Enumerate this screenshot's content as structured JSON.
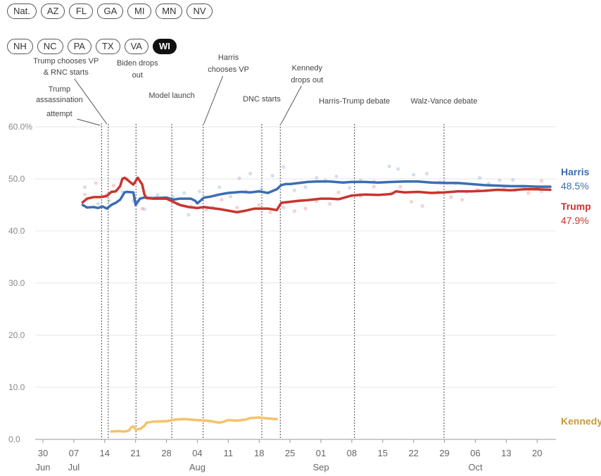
{
  "tabs": {
    "row1": [
      "Nat.",
      "AZ",
      "FL",
      "GA",
      "MI",
      "MN",
      "NV"
    ],
    "row2": [
      "NH",
      "NC",
      "PA",
      "TX",
      "VA",
      "WI"
    ],
    "selected": "WI"
  },
  "chart_data": {
    "type": "line",
    "title": "",
    "xlabel": "",
    "ylabel": "",
    "ylim": [
      0,
      60
    ],
    "y_ticks": [
      "0.0",
      "10.0",
      "20.0",
      "30.0",
      "40.0",
      "50.0",
      "60.0%"
    ],
    "y_tick_values": [
      0,
      10,
      20,
      30,
      40,
      50,
      60
    ],
    "x_ticks": [
      {
        "day": 0,
        "label": "30",
        "month": "Jun"
      },
      {
        "day": 7,
        "label": "07",
        "month": "Jul"
      },
      {
        "day": 14,
        "label": "14",
        "month": ""
      },
      {
        "day": 21,
        "label": "21",
        "month": ""
      },
      {
        "day": 28,
        "label": "28",
        "month": ""
      },
      {
        "day": 35,
        "label": "04",
        "month": "Aug"
      },
      {
        "day": 42,
        "label": "11",
        "month": ""
      },
      {
        "day": 49,
        "label": "18",
        "month": ""
      },
      {
        "day": 56,
        "label": "25",
        "month": ""
      },
      {
        "day": 63,
        "label": "01",
        "month": "Sep"
      },
      {
        "day": 70,
        "label": "08",
        "month": ""
      },
      {
        "day": 77,
        "label": "15",
        "month": ""
      },
      {
        "day": 84,
        "label": "22",
        "month": ""
      },
      {
        "day": 91,
        "label": "29",
        "month": ""
      },
      {
        "day": 98,
        "label": "06",
        "month": "Oct"
      },
      {
        "day": 105,
        "label": "13",
        "month": ""
      },
      {
        "day": 112,
        "label": "20",
        "month": ""
      }
    ],
    "events": [
      {
        "day": 13.3,
        "lines": [
          "Trump",
          "assassination",
          "attempt"
        ]
      },
      {
        "day": 14.8,
        "lines": [
          "Trump chooses VP",
          "& RNC starts"
        ]
      },
      {
        "day": 21.1,
        "lines": [
          "Biden drops",
          "out"
        ]
      },
      {
        "day": 29.2,
        "lines": [
          "Model launch"
        ]
      },
      {
        "day": 36.3,
        "lines": [
          "Harris",
          "chooses VP"
        ]
      },
      {
        "day": 49.6,
        "lines": [
          "DNC starts"
        ]
      },
      {
        "day": 53.8,
        "lines": [
          "Kennedy",
          "drops out"
        ]
      },
      {
        "day": 70.6,
        "lines": [
          "Harris-Trump debate"
        ]
      },
      {
        "day": 90.9,
        "lines": [
          "Walz-Vance debate"
        ]
      }
    ],
    "series": [
      {
        "name": "Harris",
        "color": "#3b6db3",
        "end_value": "48.5%",
        "x": [
          9.0,
          10.0,
          11.5,
          12.5,
          13.5,
          14.5,
          15.5,
          16.5,
          17.5,
          18.5,
          19.0,
          20.5,
          21.0,
          22.0,
          23.0,
          25.0,
          28.0,
          29.5,
          31.0,
          33.5,
          34.5,
          35.0,
          36.5,
          38.0,
          40.0,
          42.0,
          45.0,
          47.0,
          49.0,
          51.0,
          53.0,
          54.0,
          55.0,
          56.0,
          58.0,
          60.0,
          62.0,
          65.0,
          68.0,
          70.0,
          73.0,
          76.0,
          79.0,
          82.0,
          85.0,
          88.0,
          91.0,
          94.0,
          97.0,
          100.0,
          103.0,
          106.0,
          109.0,
          112.0,
          115.0
        ],
        "values": [
          45.0,
          44.5,
          44.6,
          44.4,
          44.7,
          44.3,
          45.0,
          45.4,
          46.0,
          47.4,
          47.5,
          47.4,
          45.0,
          46.2,
          46.4,
          46.3,
          46.4,
          46.0,
          46.2,
          46.2,
          45.8,
          45.3,
          46.4,
          46.6,
          47.0,
          47.3,
          47.5,
          47.4,
          47.6,
          47.3,
          48.0,
          48.8,
          49.0,
          49.0,
          49.2,
          49.4,
          49.5,
          49.5,
          49.3,
          49.4,
          49.4,
          49.3,
          49.4,
          49.5,
          49.5,
          49.3,
          49.2,
          49.2,
          49.0,
          48.8,
          48.7,
          48.6,
          48.6,
          48.5,
          48.5
        ]
      },
      {
        "name": "Trump",
        "color": "#c8352e",
        "end_value": "47.9%",
        "x": [
          9.0,
          10.0,
          11.5,
          13.0,
          14.5,
          15.5,
          16.5,
          17.5,
          18.0,
          18.5,
          19.0,
          20.0,
          20.5,
          21.5,
          22.5,
          23.0,
          23.5,
          25.0,
          28.0,
          29.5,
          31.0,
          33.0,
          35.0,
          36.5,
          38.0,
          40.0,
          42.0,
          44.0,
          46.0,
          48.0,
          51.0,
          53.0,
          54.0,
          56.0,
          58.0,
          60.0,
          63.0,
          65.0,
          67.0,
          70.0,
          73.0,
          76.0,
          79.0,
          80.0,
          82.0,
          85.0,
          88.0,
          91.0,
          94.0,
          97.0,
          100.0,
          103.0,
          106.0,
          109.0,
          112.0,
          115.0
        ],
        "values": [
          45.5,
          46.2,
          46.5,
          46.5,
          46.7,
          47.5,
          47.6,
          48.6,
          50.0,
          50.2,
          49.9,
          49.2,
          48.9,
          50.2,
          48.9,
          47.0,
          46.3,
          46.2,
          46.2,
          45.6,
          45.0,
          44.6,
          44.4,
          44.6,
          44.4,
          44.2,
          43.9,
          43.6,
          43.9,
          44.3,
          44.3,
          44.0,
          45.4,
          45.6,
          45.8,
          45.9,
          46.2,
          46.2,
          46.1,
          46.8,
          47.0,
          46.9,
          47.1,
          47.6,
          47.4,
          47.5,
          47.3,
          47.4,
          47.6,
          47.6,
          47.7,
          47.9,
          47.8,
          48.0,
          48.0,
          47.9
        ]
      },
      {
        "name": "Kennedy",
        "color": "#f5c26b",
        "label_color": "#c79a3a",
        "x": [
          15.5,
          17.0,
          18.5,
          19.5,
          20.0,
          20.5,
          21.0,
          22.0,
          23.0,
          23.5,
          25.0,
          28.0,
          30.0,
          32.0,
          35.0,
          37.0,
          38.0,
          40.0,
          41.0,
          42.0,
          44.0,
          46.0,
          47.0,
          49.0,
          51.0,
          53.0
        ],
        "values": [
          1.5,
          1.6,
          1.5,
          1.7,
          2.3,
          2.5,
          1.9,
          2.0,
          2.6,
          3.2,
          3.4,
          3.5,
          3.8,
          3.9,
          3.7,
          3.6,
          3.5,
          3.2,
          3.4,
          3.7,
          3.6,
          3.8,
          4.1,
          4.2,
          4.0,
          3.9
        ]
      }
    ],
    "polls": {
      "harris": [
        [
          9.5,
          48.4
        ],
        [
          12.5,
          45.2
        ],
        [
          15.0,
          45.8
        ],
        [
          18.0,
          47.5
        ],
        [
          20.5,
          45.8
        ],
        [
          23.0,
          44.2
        ],
        [
          26.0,
          46.9
        ],
        [
          29.5,
          46.5
        ],
        [
          32.0,
          47.3
        ],
        [
          33.0,
          43.1
        ],
        [
          35.5,
          47.6
        ],
        [
          38.5,
          44.6
        ],
        [
          40.0,
          48.4
        ],
        [
          42.5,
          46.6
        ],
        [
          44.5,
          50.1
        ],
        [
          47.0,
          51.0
        ],
        [
          49.5,
          48.0
        ],
        [
          52.0,
          50.6
        ],
        [
          54.5,
          52.3
        ],
        [
          57.0,
          47.8
        ],
        [
          59.5,
          48.4
        ],
        [
          62.0,
          50.2
        ],
        [
          64.0,
          49.7
        ],
        [
          66.5,
          50.5
        ],
        [
          69.5,
          48.3
        ],
        [
          72.0,
          49.7
        ],
        [
          75.0,
          49.5
        ],
        [
          78.5,
          52.4
        ],
        [
          80.5,
          51.9
        ],
        [
          84.0,
          50.8
        ],
        [
          87.0,
          51.0
        ],
        [
          90.0,
          49.4
        ],
        [
          93.5,
          49.1
        ],
        [
          96.0,
          47.5
        ],
        [
          99.0,
          50.2
        ],
        [
          103.5,
          49.7
        ],
        [
          106.5,
          49.8
        ],
        [
          109.0,
          48.5
        ],
        [
          113.0,
          47.6
        ]
      ],
      "trump": [
        [
          9.5,
          47.0
        ],
        [
          12.0,
          49.2
        ],
        [
          14.5,
          47.0
        ],
        [
          16.0,
          48.7
        ],
        [
          19.0,
          50.1
        ],
        [
          22.5,
          44.3
        ],
        [
          25.5,
          46.4
        ],
        [
          28.5,
          46.0
        ],
        [
          30.5,
          45.2
        ],
        [
          33.5,
          44.7
        ],
        [
          37.0,
          44.1
        ],
        [
          40.5,
          46.0
        ],
        [
          44.0,
          44.5
        ],
        [
          46.0,
          47.6
        ],
        [
          49.0,
          45.0
        ],
        [
          51.5,
          43.6
        ],
        [
          54.5,
          44.5
        ],
        [
          57.0,
          43.8
        ],
        [
          59.5,
          44.3
        ],
        [
          62.0,
          45.7
        ],
        [
          65.0,
          45.2
        ],
        [
          67.0,
          47.4
        ],
        [
          72.0,
          46.7
        ],
        [
          75.0,
          48.5
        ],
        [
          79.0,
          47.3
        ],
        [
          81.0,
          48.5
        ],
        [
          83.5,
          45.6
        ],
        [
          86.0,
          44.8
        ],
        [
          89.5,
          47.5
        ],
        [
          92.5,
          46.5
        ],
        [
          95.0,
          46.0
        ],
        [
          98.5,
          47.9
        ],
        [
          101.0,
          49.1
        ],
        [
          104.5,
          48.3
        ],
        [
          107.0,
          47.8
        ],
        [
          110.0,
          47.3
        ],
        [
          113.0,
          49.6
        ]
      ]
    }
  }
}
